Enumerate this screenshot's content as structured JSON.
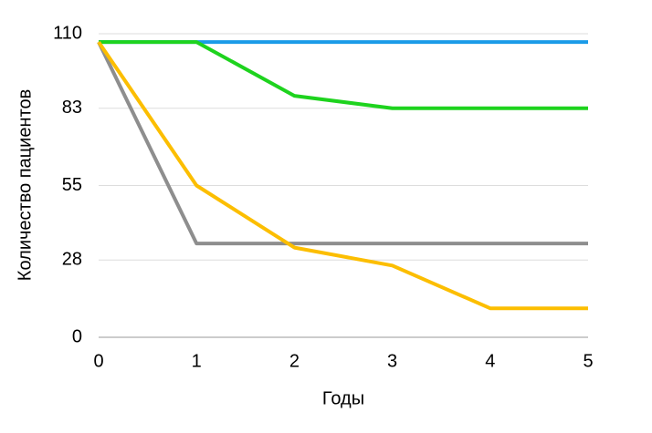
{
  "chart_data": {
    "type": "line",
    "x_label": "Годы",
    "y_label": "Количество пациентов",
    "x": [
      0,
      1,
      2,
      3,
      4,
      5
    ],
    "series": [
      {
        "color": "#1a9be8",
        "values": [
          107,
          107,
          107,
          107,
          107,
          107
        ]
      },
      {
        "color": "#1ed31e",
        "values": [
          107,
          107,
          87.5,
          83,
          83,
          83
        ]
      },
      {
        "color": "#8e8e8e",
        "values": [
          107,
          34,
          34,
          34,
          34,
          34
        ]
      },
      {
        "color": "#fcbe00",
        "values": [
          107,
          55,
          32.5,
          26,
          10.5,
          10.5
        ]
      }
    ],
    "xlim": [
      0,
      5
    ],
    "xticks": [
      0,
      1,
      2,
      3,
      4,
      5
    ],
    "ylim": [
      0,
      110
    ],
    "yticks": [
      0,
      28,
      55,
      83,
      110
    ],
    "grid": true
  }
}
